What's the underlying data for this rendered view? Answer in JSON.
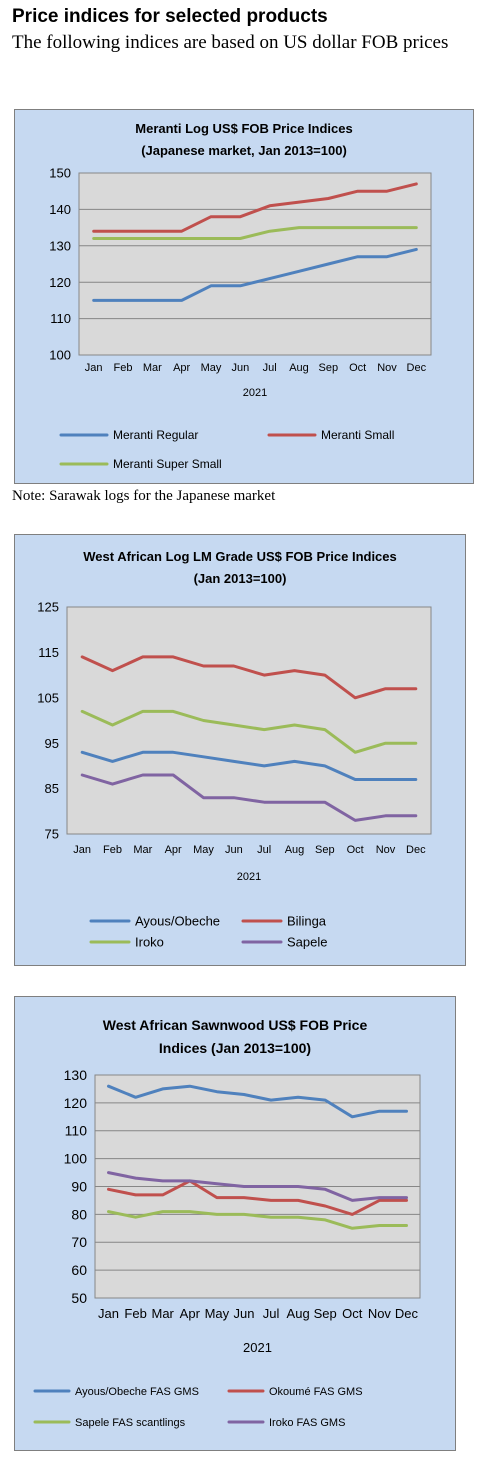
{
  "page": {
    "heading": "Price indices for selected products",
    "subheading": "The following indices are based on US dollar FOB prices",
    "note": "Note: Sarawak logs for the Japanese market"
  },
  "chart_data": [
    {
      "type": "line",
      "title": "Meranti Log US$ FOB Price Indices",
      "subtitle": "(Japanese market, Jan 2013=100)",
      "xlabel": "2021",
      "ylabel": "",
      "categories": [
        "Jan",
        "Feb",
        "Mar",
        "Apr",
        "May",
        "Jun",
        "Jul",
        "Aug",
        "Sep",
        "Oct",
        "Nov",
        "Dec"
      ],
      "ylim": [
        100,
        150
      ],
      "yticks": [
        100,
        110,
        120,
        130,
        140,
        150
      ],
      "grid": true,
      "legend": "bottom",
      "series": [
        {
          "name": "Meranti Regular",
          "color": "#4f81bd",
          "values": [
            115,
            115,
            115,
            115,
            119,
            119,
            121,
            123,
            125,
            127,
            127,
            129
          ]
        },
        {
          "name": "Meranti Small",
          "color": "#c0504d",
          "values": [
            134,
            134,
            134,
            134,
            138,
            138,
            141,
            142,
            143,
            145,
            145,
            147
          ]
        },
        {
          "name": "Meranti Super Small",
          "color": "#9bbb59",
          "values": [
            132,
            132,
            132,
            132,
            132,
            132,
            134,
            135,
            135,
            135,
            135,
            135
          ]
        }
      ]
    },
    {
      "type": "line",
      "title": "West African Log LM Grade US$ FOB Price Indices",
      "subtitle": "(Jan 2013=100)",
      "xlabel": "2021",
      "ylabel": "",
      "categories": [
        "Jan",
        "Feb",
        "Mar",
        "Apr",
        "May",
        "Jun",
        "Jul",
        "Aug",
        "Sep",
        "Oct",
        "Nov",
        "Dec"
      ],
      "ylim": [
        75,
        125
      ],
      "yticks": [
        75,
        85,
        95,
        105,
        115,
        125
      ],
      "grid": false,
      "legend": "bottom",
      "series": [
        {
          "name": "Ayous/Obeche",
          "color": "#4f81bd",
          "values": [
            93,
            91,
            93,
            93,
            92,
            91,
            90,
            91,
            90,
            87,
            87,
            87
          ]
        },
        {
          "name": "Bilinga",
          "color": "#c0504d",
          "values": [
            114,
            111,
            114,
            114,
            112,
            112,
            110,
            111,
            110,
            105,
            107,
            107
          ]
        },
        {
          "name": "Iroko",
          "color": "#9bbb59",
          "values": [
            102,
            99,
            102,
            102,
            100,
            99,
            98,
            99,
            98,
            93,
            95,
            95
          ]
        },
        {
          "name": "Sapele",
          "color": "#8064a2",
          "values": [
            88,
            86,
            88,
            88,
            83,
            83,
            82,
            82,
            82,
            78,
            79,
            79
          ]
        }
      ]
    },
    {
      "type": "line",
      "title": "West African Sawnwood US$ FOB Price",
      "subtitle": "Indices (Jan 2013=100)",
      "xlabel": "2021",
      "ylabel": "",
      "categories": [
        "Jan",
        "Feb",
        "Mar",
        "Apr",
        "May",
        "Jun",
        "Jul",
        "Aug",
        "Sep",
        "Oct",
        "Nov",
        "Dec"
      ],
      "ylim": [
        50,
        130
      ],
      "yticks": [
        50,
        60,
        70,
        80,
        90,
        100,
        110,
        120,
        130
      ],
      "grid": true,
      "legend": "bottom",
      "series": [
        {
          "name": "Ayous/Obeche FAS GMS",
          "color": "#4f81bd",
          "values": [
            126,
            122,
            125,
            126,
            124,
            123,
            121,
            122,
            121,
            115,
            117,
            117
          ]
        },
        {
          "name": "Okoumé FAS GMS",
          "color": "#c0504d",
          "values": [
            89,
            87,
            87,
            92,
            86,
            86,
            85,
            85,
            83,
            80,
            85,
            85
          ]
        },
        {
          "name": "Sapele FAS scantlings",
          "color": "#9bbb59",
          "values": [
            81,
            79,
            81,
            81,
            80,
            80,
            79,
            79,
            78,
            75,
            76,
            76
          ]
        },
        {
          "name": "Iroko FAS GMS",
          "color": "#8064a2",
          "values": [
            95,
            93,
            92,
            92,
            91,
            90,
            90,
            90,
            89,
            85,
            86,
            86
          ]
        }
      ]
    }
  ]
}
